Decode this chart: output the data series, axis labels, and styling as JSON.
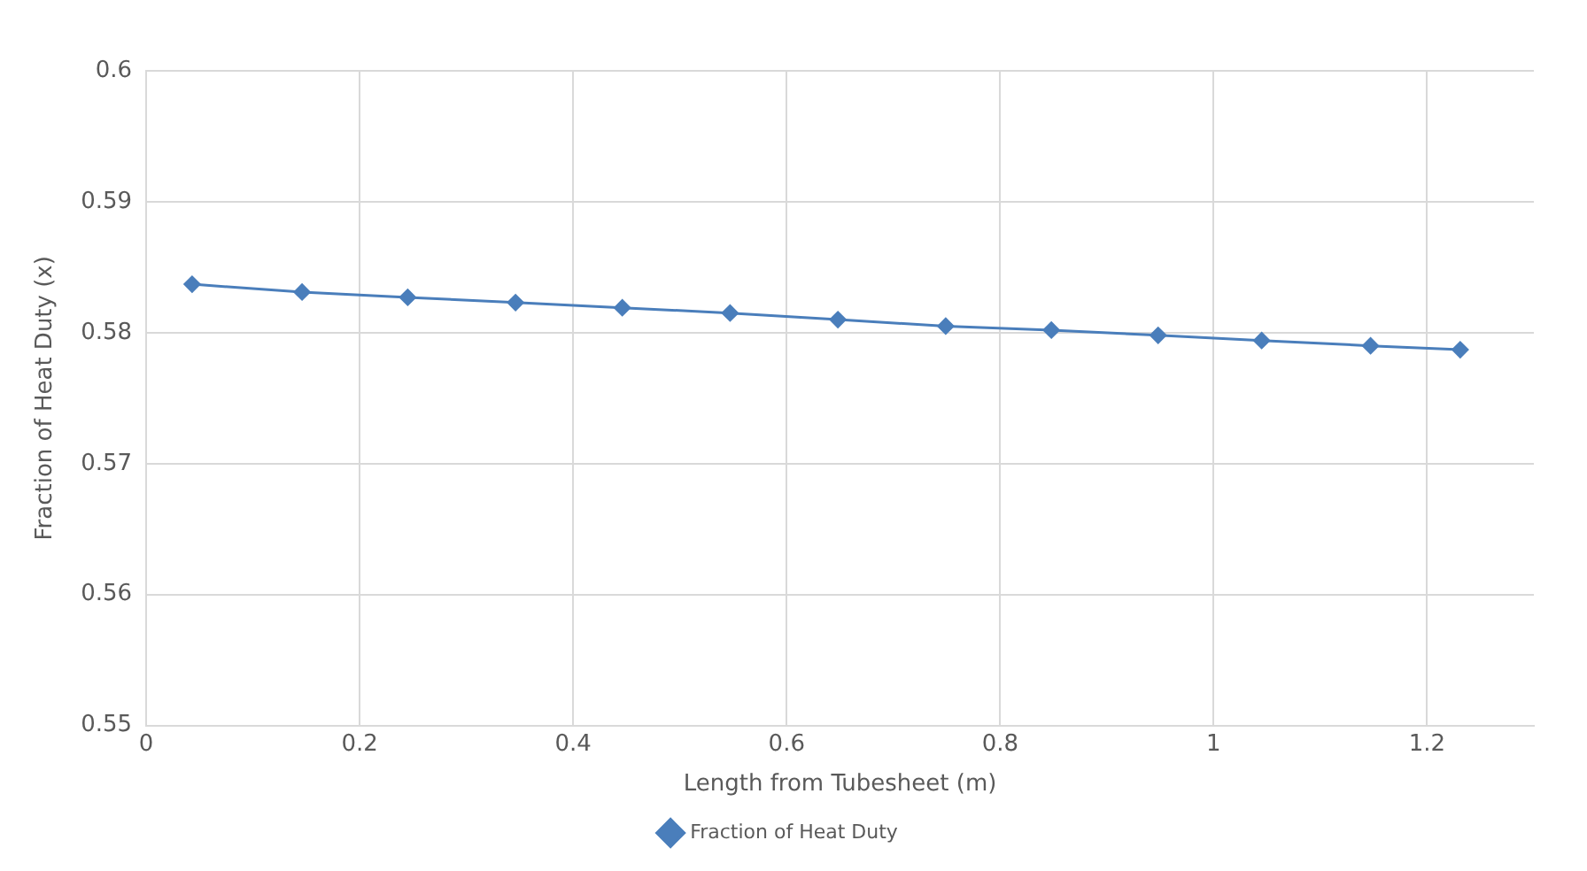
{
  "chart_data": {
    "type": "line",
    "xlabel": "Length from Tubesheet (m)",
    "ylabel": "Fraction of Heat Duty (x)",
    "x": [
      0.043,
      0.146,
      0.245,
      0.346,
      0.446,
      0.547,
      0.648,
      0.749,
      0.848,
      0.948,
      1.045,
      1.147,
      1.231
    ],
    "series": [
      {
        "name": "Fraction of Heat Duty",
        "color": "#4a7ebb",
        "values": [
          0.5837,
          0.5831,
          0.5827,
          0.5823,
          0.5819,
          0.5815,
          0.581,
          0.5805,
          0.5802,
          0.5798,
          0.5794,
          0.579,
          0.5787
        ]
      }
    ],
    "xlim": [
      0,
      1.3
    ],
    "xticks": [
      0,
      0.2,
      0.4,
      0.6,
      0.8,
      1,
      1.2
    ],
    "ylim": [
      0.55,
      0.6
    ],
    "yticks": [
      0.55,
      0.56,
      0.57,
      0.58,
      0.59,
      0.6
    ],
    "grid": true,
    "legend": "bottom",
    "marker": "diamond",
    "line_style": "solid"
  }
}
